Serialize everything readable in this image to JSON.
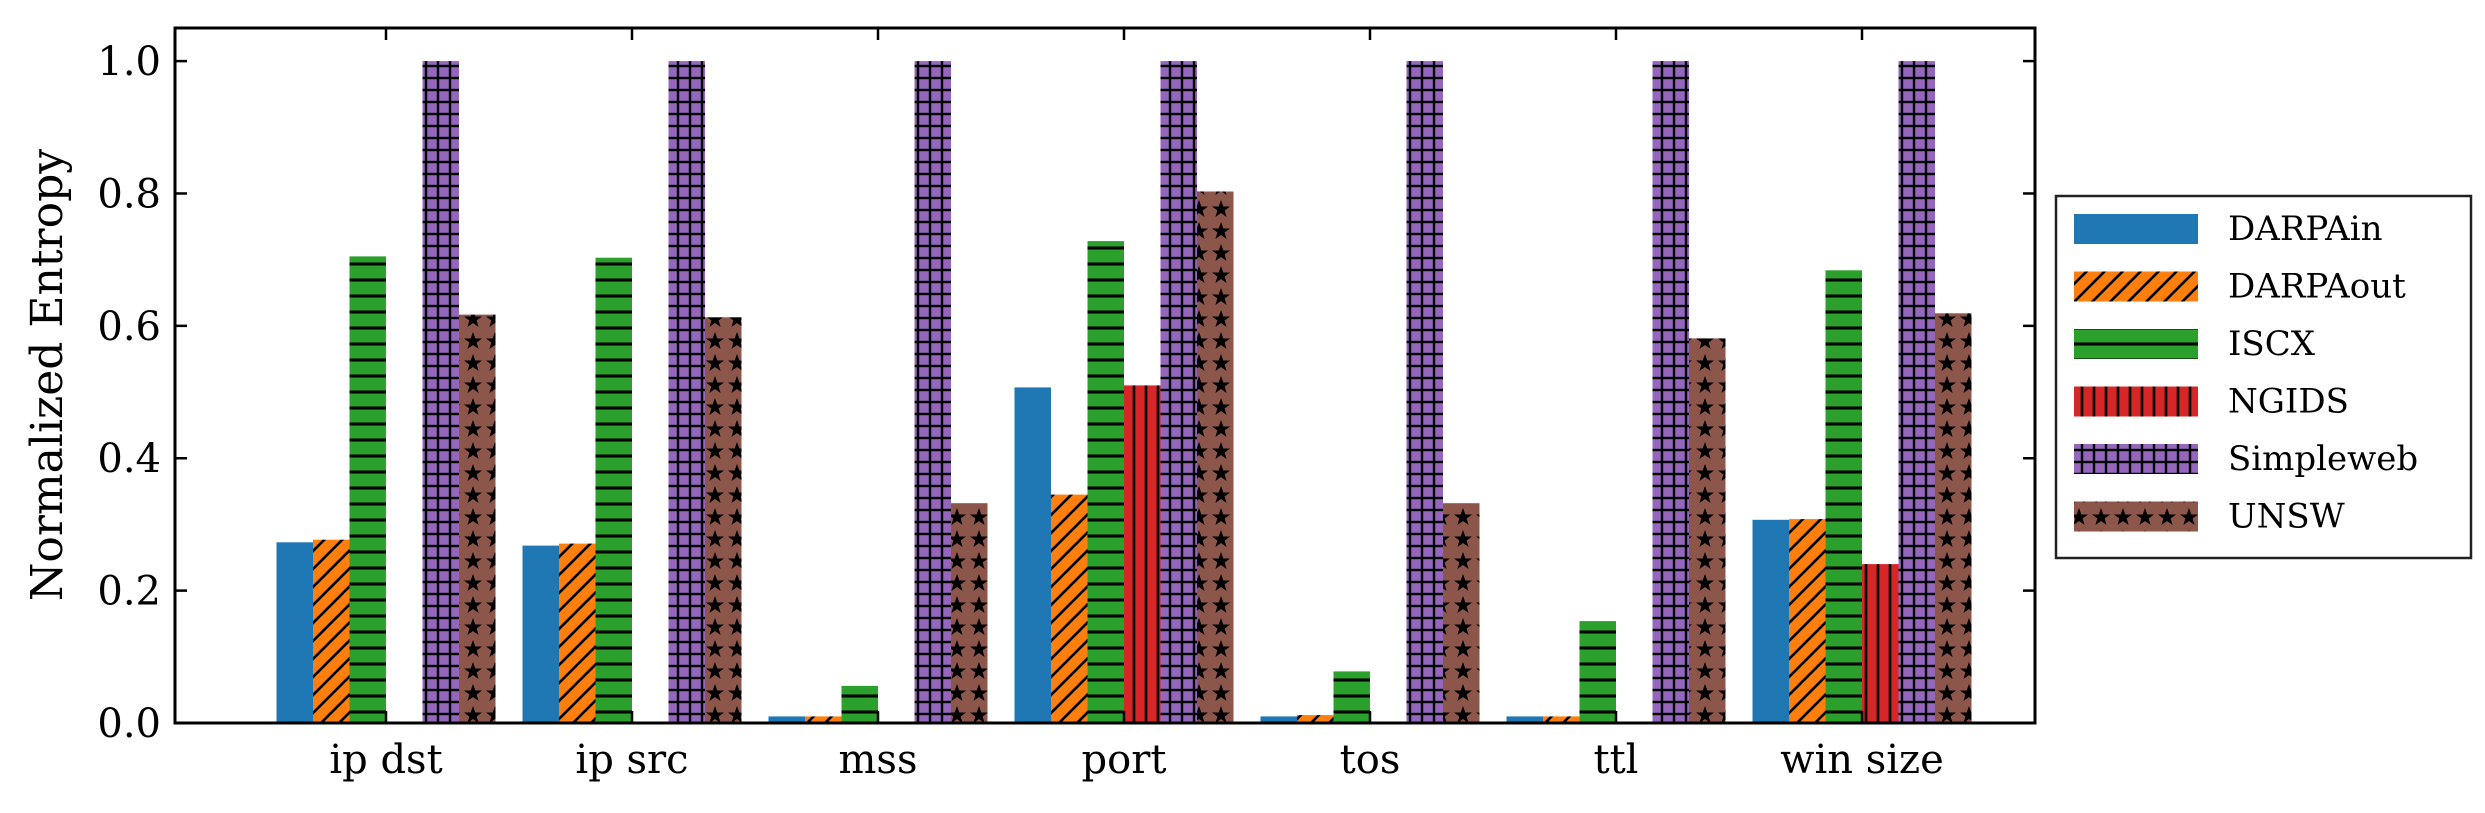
{
  "chart_data": {
    "type": "bar",
    "ylabel": "Normalized Entropy",
    "xlabel": "",
    "ylim": [
      0,
      1.05
    ],
    "yticks": [
      0.0,
      0.2,
      0.4,
      0.6,
      0.8,
      1.0
    ],
    "ytick_labels": [
      "0.0",
      "0.2",
      "0.4",
      "0.6",
      "0.8",
      "1.0"
    ],
    "categories": [
      "ip dst",
      "ip src",
      "mss",
      "port",
      "tos",
      "ttl",
      "win size"
    ],
    "legend_position": "right",
    "grid": false,
    "series": [
      {
        "name": "DARPAin",
        "color": "#1f77b4",
        "pattern": "none",
        "values": [
          0.273,
          0.268,
          0.01,
          0.507,
          0.01,
          0.01,
          0.307
        ]
      },
      {
        "name": "DARPAout",
        "color": "#ff7f0e",
        "pattern": "diagonal",
        "values": [
          0.277,
          0.271,
          0.01,
          0.345,
          0.012,
          0.01,
          0.308
        ]
      },
      {
        "name": "ISCX",
        "color": "#2ca02c",
        "pattern": "horizontal",
        "values": [
          0.705,
          0.703,
          0.056,
          0.728,
          0.078,
          0.154,
          0.684
        ]
      },
      {
        "name": "NGIDS",
        "color": "#d62728",
        "pattern": "vertical",
        "values": [
          0.0,
          0.0,
          0.0,
          0.51,
          0.0,
          0.0,
          0.24
        ]
      },
      {
        "name": "Simpleweb",
        "color": "#9467bd",
        "pattern": "grid",
        "values": [
          1.0,
          1.0,
          1.0,
          1.0,
          1.0,
          1.0,
          1.0
        ]
      },
      {
        "name": "UNSW",
        "color": "#8c564b",
        "pattern": "stars",
        "values": [
          0.617,
          0.613,
          0.332,
          0.803,
          0.332,
          0.581,
          0.619
        ]
      }
    ]
  }
}
